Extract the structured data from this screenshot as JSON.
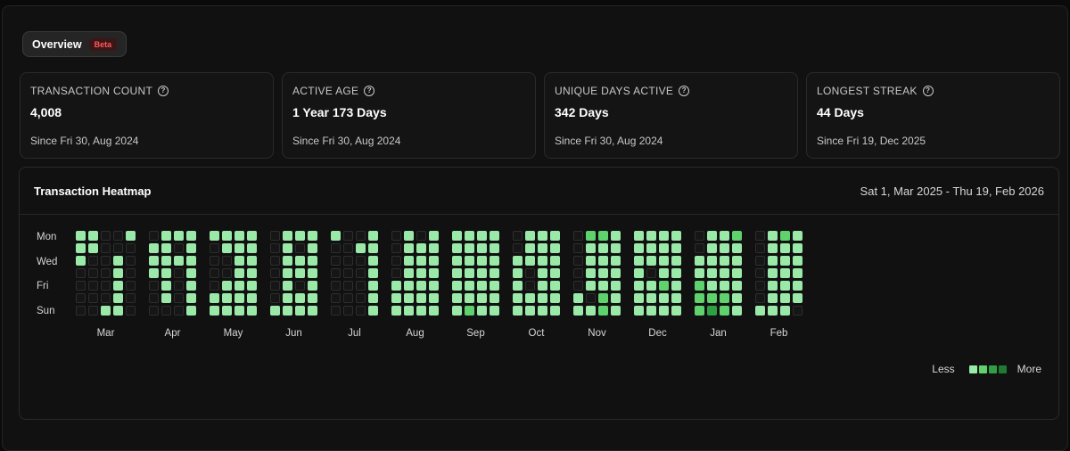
{
  "overview": {
    "tab_label": "Overview",
    "badge": "Beta"
  },
  "stats": [
    {
      "label": "TRANSACTION COUNT",
      "value": "4,008",
      "since": "Since Fri 30, Aug 2024"
    },
    {
      "label": "ACTIVE AGE",
      "value": "1 Year 173 Days",
      "since": "Since Fri 30, Aug 2024"
    },
    {
      "label": "UNIQUE DAYS ACTIVE",
      "value": "342 Days",
      "since": "Since Fri 30, Aug 2024"
    },
    {
      "label": "LONGEST STREAK",
      "value": "44 Days",
      "since": "Since Fri 19, Dec 2025"
    }
  ],
  "heatmap": {
    "title": "Transaction Heatmap",
    "range": "Sat 1, Mar 2025 - Thu 19, Feb 2026",
    "day_labels": [
      "Mon",
      "Wed",
      "Fri",
      "Sun"
    ],
    "months": [
      "Mar",
      "Apr",
      "May",
      "Jun",
      "Jul",
      "Aug",
      "Sep",
      "Oct",
      "Nov",
      "Dec",
      "Jan",
      "Feb"
    ],
    "legend": {
      "less": "Less",
      "more": "More"
    },
    "colors": {
      "empty": "#161616",
      "empty_border": "#2e2e2e",
      "level1": "#9be9a8",
      "level2": "#5fd16d",
      "level3": "#2ea043",
      "level4": "#1f7a32",
      "legend": [
        "#9be9a8",
        "#5fd16d",
        "#2ea043",
        "#1f7a32"
      ]
    },
    "weeks": [
      {
        "month": "Mar",
        "days": [
          1,
          1,
          1,
          0,
          0,
          0,
          0
        ]
      },
      {
        "month": "Mar",
        "days": [
          1,
          1,
          0,
          0,
          0,
          0,
          0
        ]
      },
      {
        "month": "Mar",
        "days": [
          0,
          0,
          0,
          0,
          0,
          0,
          1
        ]
      },
      {
        "month": "Mar",
        "days": [
          0,
          0,
          1,
          1,
          1,
          1,
          1
        ]
      },
      {
        "month": "Mar",
        "days": [
          1,
          0,
          0,
          0,
          0,
          0,
          0
        ]
      },
      {
        "month": "Apr",
        "days": [
          0,
          1,
          1,
          1,
          0,
          0,
          0
        ]
      },
      {
        "month": "Apr",
        "days": [
          1,
          1,
          1,
          1,
          1,
          1,
          0
        ]
      },
      {
        "month": "Apr",
        "days": [
          1,
          0,
          1,
          0,
          0,
          0,
          0
        ]
      },
      {
        "month": "Apr",
        "days": [
          1,
          1,
          1,
          1,
          1,
          1,
          1
        ]
      },
      {
        "month": "May",
        "days": [
          1,
          0,
          0,
          0,
          0,
          1,
          1
        ]
      },
      {
        "month": "May",
        "days": [
          1,
          1,
          0,
          0,
          1,
          1,
          1
        ]
      },
      {
        "month": "May",
        "days": [
          1,
          1,
          1,
          1,
          1,
          1,
          1
        ]
      },
      {
        "month": "May",
        "days": [
          1,
          1,
          1,
          1,
          1,
          1,
          1
        ]
      },
      {
        "month": "Jun",
        "days": [
          0,
          0,
          0,
          0,
          0,
          0,
          1
        ]
      },
      {
        "month": "Jun",
        "days": [
          1,
          1,
          1,
          1,
          1,
          1,
          1
        ]
      },
      {
        "month": "Jun",
        "days": [
          1,
          0,
          1,
          1,
          0,
          1,
          1
        ]
      },
      {
        "month": "Jun",
        "days": [
          1,
          1,
          1,
          1,
          1,
          1,
          1
        ]
      },
      {
        "month": "Jul",
        "days": [
          1,
          0,
          0,
          0,
          0,
          0,
          0
        ]
      },
      {
        "month": "Jul",
        "days": [
          0,
          0,
          0,
          0,
          0,
          0,
          0
        ]
      },
      {
        "month": "Jul",
        "days": [
          0,
          1,
          0,
          0,
          0,
          0,
          0
        ]
      },
      {
        "month": "Jul",
        "days": [
          1,
          1,
          1,
          1,
          1,
          1,
          1
        ]
      },
      {
        "month": "Aug",
        "days": [
          0,
          0,
          0,
          0,
          1,
          1,
          1
        ]
      },
      {
        "month": "Aug",
        "days": [
          1,
          1,
          1,
          1,
          1,
          1,
          1
        ]
      },
      {
        "month": "Aug",
        "days": [
          0,
          1,
          1,
          1,
          1,
          1,
          1
        ]
      },
      {
        "month": "Aug",
        "days": [
          1,
          1,
          1,
          1,
          1,
          1,
          1
        ]
      },
      {
        "month": "Sep",
        "days": [
          1,
          1,
          1,
          1,
          1,
          1,
          1
        ]
      },
      {
        "month": "Sep",
        "days": [
          1,
          1,
          1,
          1,
          1,
          1,
          2
        ]
      },
      {
        "month": "Sep",
        "days": [
          1,
          1,
          1,
          1,
          1,
          1,
          1
        ]
      },
      {
        "month": "Sep",
        "days": [
          1,
          1,
          1,
          1,
          1,
          1,
          1
        ]
      },
      {
        "month": "Oct",
        "days": [
          0,
          0,
          1,
          1,
          1,
          1,
          1
        ]
      },
      {
        "month": "Oct",
        "days": [
          1,
          1,
          1,
          0,
          0,
          1,
          1
        ]
      },
      {
        "month": "Oct",
        "days": [
          1,
          1,
          1,
          1,
          1,
          1,
          1
        ]
      },
      {
        "month": "Oct",
        "days": [
          1,
          1,
          1,
          1,
          1,
          1,
          1
        ]
      },
      {
        "month": "Nov",
        "days": [
          0,
          0,
          0,
          0,
          0,
          1,
          1
        ]
      },
      {
        "month": "Nov",
        "days": [
          2,
          1,
          1,
          1,
          1,
          0,
          1
        ]
      },
      {
        "month": "Nov",
        "days": [
          2,
          1,
          1,
          1,
          1,
          2,
          2
        ]
      },
      {
        "month": "Nov",
        "days": [
          1,
          1,
          1,
          1,
          1,
          1,
          1
        ]
      },
      {
        "month": "Dec",
        "days": [
          1,
          1,
          1,
          1,
          1,
          1,
          1
        ]
      },
      {
        "month": "Dec",
        "days": [
          1,
          1,
          1,
          0,
          1,
          1,
          1
        ]
      },
      {
        "month": "Dec",
        "days": [
          1,
          1,
          1,
          1,
          2,
          1,
          1
        ]
      },
      {
        "month": "Dec",
        "days": [
          1,
          1,
          1,
          1,
          1,
          1,
          1
        ]
      },
      {
        "month": "Jan",
        "days": [
          0,
          0,
          1,
          1,
          2,
          2,
          2
        ]
      },
      {
        "month": "Jan",
        "days": [
          1,
          1,
          1,
          1,
          1,
          2,
          3
        ]
      },
      {
        "month": "Jan",
        "days": [
          1,
          1,
          1,
          1,
          1,
          2,
          2
        ]
      },
      {
        "month": "Jan",
        "days": [
          2,
          1,
          1,
          1,
          1,
          1,
          1
        ]
      },
      {
        "month": "Feb",
        "days": [
          0,
          0,
          0,
          0,
          0,
          0,
          1
        ]
      },
      {
        "month": "Feb",
        "days": [
          1,
          1,
          1,
          1,
          1,
          1,
          1
        ]
      },
      {
        "month": "Feb",
        "days": [
          2,
          1,
          1,
          1,
          1,
          1,
          1
        ]
      },
      {
        "month": "Feb",
        "days": [
          1,
          1,
          1,
          1,
          1,
          1,
          0
        ]
      }
    ]
  }
}
